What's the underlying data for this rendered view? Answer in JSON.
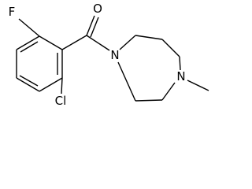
{
  "nodes": [
    {
      "label": "F"
    },
    {
      "label": "O"
    },
    {
      "label": "N"
    },
    {
      "label": "N"
    },
    {
      "label": "Cl"
    }
  ]
}
